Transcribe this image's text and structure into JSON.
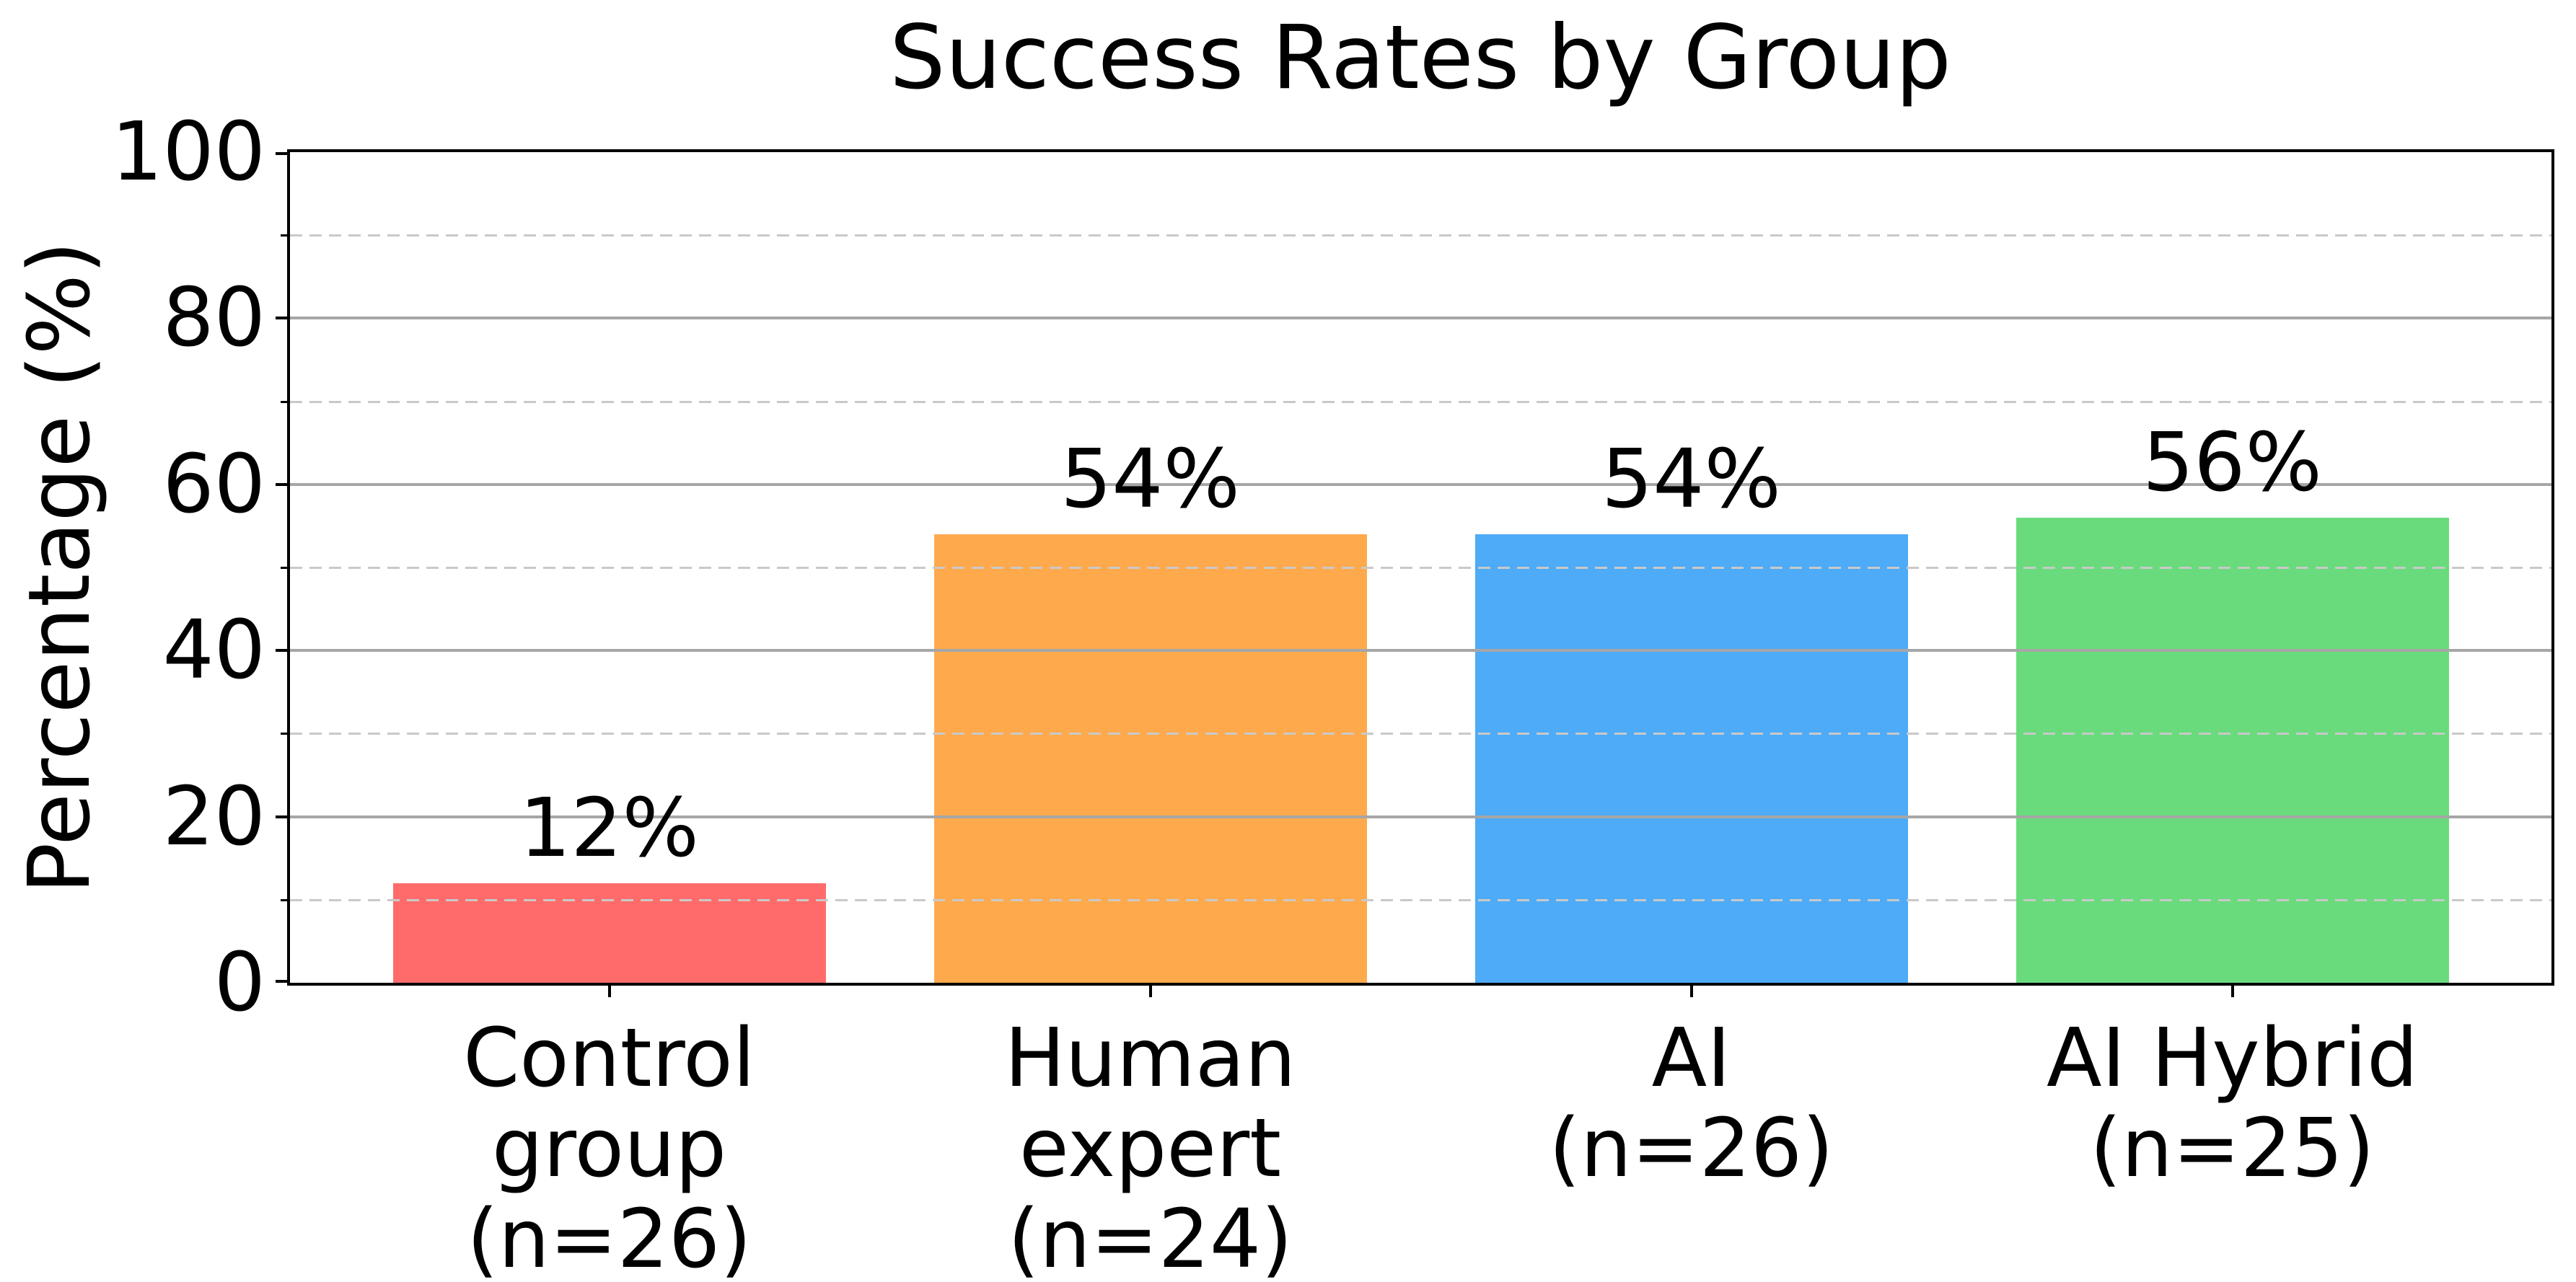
{
  "title": "Success Rates by Group",
  "ylabel": "Percentage (%)",
  "chart_data": {
    "type": "bar",
    "categories": [
      "Control group (n=26)",
      "Human expert (n=24)",
      "AI (n=26)",
      "AI Hybrid (n=25)"
    ],
    "category_label_lines": [
      [
        "Control",
        "group",
        "(n=26)"
      ],
      [
        "Human",
        "expert",
        "(n=24)"
      ],
      [
        "AI",
        "(n=26)"
      ],
      [
        "AI Hybrid",
        "(n=25)"
      ]
    ],
    "values": [
      12,
      54,
      54,
      56
    ],
    "bar_value_labels": [
      "12%",
      "54%",
      "54%",
      "56%"
    ],
    "bar_colors": [
      "#ff6b6b",
      "#ffa94d",
      "#4dabf7",
      "#69db7c"
    ],
    "title": "Success Rates by Group",
    "xlabel": "",
    "ylabel": "Percentage (%)",
    "ylim": [
      0,
      100
    ],
    "ytick_major_values": [
      0,
      20,
      40,
      60,
      80,
      100
    ],
    "ytick_major_labels": [
      "0",
      "20",
      "40",
      "60",
      "80",
      "100"
    ],
    "ytick_minor_values": [
      10,
      30,
      50,
      70,
      90
    ],
    "grid": {
      "major_style": "solid",
      "major_color": "#a6a6a6",
      "minor_style": "dashed",
      "minor_color": "#c9c9c9",
      "drawn_above_bars": true
    },
    "frame_color": "#000000",
    "background_color": "#ffffff",
    "legend": null
  }
}
